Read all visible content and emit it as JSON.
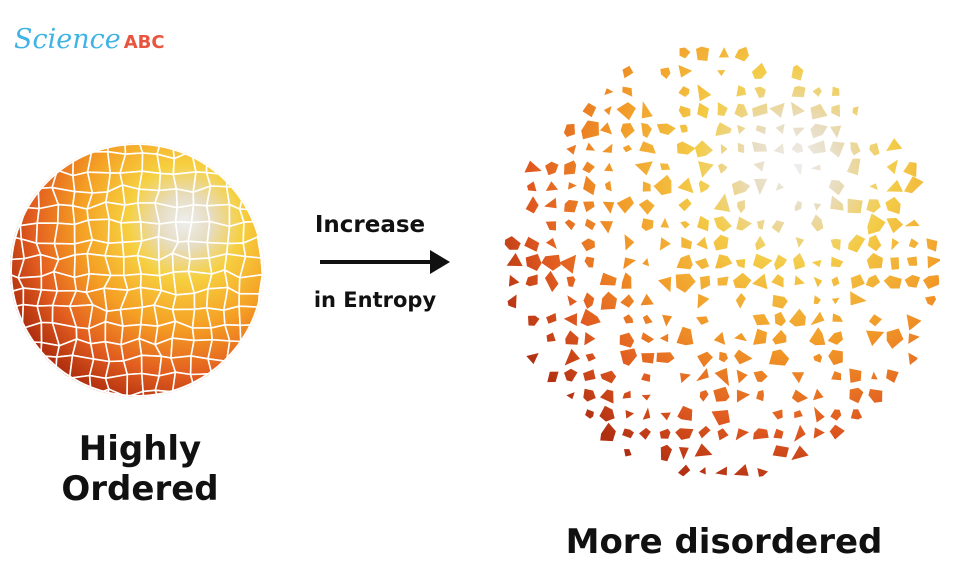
{
  "logo": {
    "name": "Science",
    "suffix": "ABC"
  },
  "labels": {
    "process_top": "Increase",
    "process_bottom": "in Entropy",
    "left": [
      "Highly",
      "Ordered"
    ],
    "right": "More disordered"
  }
}
